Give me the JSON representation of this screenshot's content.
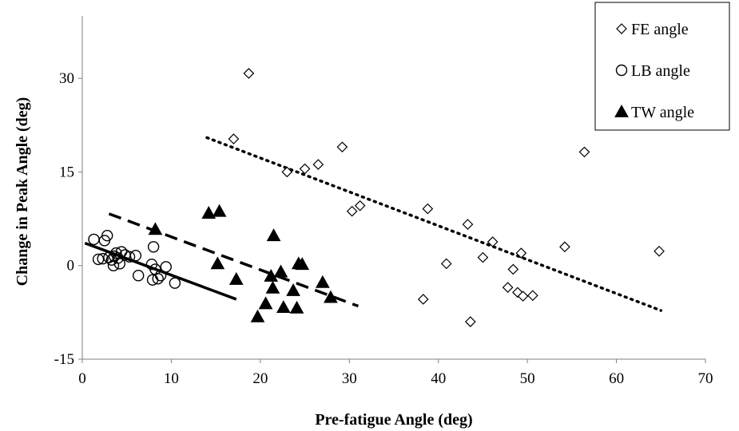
{
  "chart_data": {
    "type": "scatter",
    "xlabel": "Pre-fatigue Angle (deg)",
    "ylabel": "Change in Peak Angle (deg)",
    "xlim": [
      0,
      70
    ],
    "ylim": [
      -15,
      40
    ],
    "x_ticks": [
      0,
      10,
      20,
      30,
      40,
      50,
      60,
      70
    ],
    "y_ticks": [
      -15,
      0,
      15,
      30
    ],
    "grid": false,
    "legend_position": "top-right",
    "series": [
      {
        "name": "FE angle",
        "marker": "diamond",
        "points": [
          [
            17,
            20.3
          ],
          [
            18.7,
            30.8
          ],
          [
            23,
            15
          ],
          [
            25,
            15.5
          ],
          [
            26.5,
            16.2
          ],
          [
            29.2,
            19
          ],
          [
            30.3,
            8.7
          ],
          [
            31.2,
            9.6
          ],
          [
            38.3,
            -5.4
          ],
          [
            38.8,
            9.1
          ],
          [
            40.9,
            0.3
          ],
          [
            43.3,
            6.6
          ],
          [
            43.6,
            -9
          ],
          [
            45,
            1.3
          ],
          [
            46.1,
            3.8
          ],
          [
            47.8,
            -3.5
          ],
          [
            48.4,
            -0.6
          ],
          [
            48.9,
            -4.3
          ],
          [
            49.3,
            2
          ],
          [
            49.5,
            -4.9
          ],
          [
            50.6,
            -4.8
          ],
          [
            54.2,
            3
          ],
          [
            56.4,
            18.2
          ],
          [
            64.8,
            2.3
          ]
        ]
      },
      {
        "name": "LB angle",
        "marker": "circle",
        "points": [
          [
            1.3,
            4.2
          ],
          [
            1.8,
            1
          ],
          [
            2.3,
            1.1
          ],
          [
            2.5,
            4
          ],
          [
            2.8,
            4.8
          ],
          [
            3,
            1.3
          ],
          [
            3.3,
            0.9
          ],
          [
            3.5,
            0
          ],
          [
            3.6,
            1.5
          ],
          [
            3.8,
            2
          ],
          [
            4,
            1.2
          ],
          [
            4.2,
            0.3
          ],
          [
            4.4,
            2.2
          ],
          [
            4.8,
            1.7
          ],
          [
            5.3,
            1.4
          ],
          [
            6,
            1.6
          ],
          [
            6.3,
            -1.6
          ],
          [
            7.8,
            0.2
          ],
          [
            7.9,
            -2.3
          ],
          [
            8,
            3
          ],
          [
            8.2,
            -0.6
          ],
          [
            8.5,
            -2.1
          ],
          [
            8.8,
            -1.6
          ],
          [
            9.4,
            -0.2
          ],
          [
            10.4,
            -2.8
          ]
        ]
      },
      {
        "name": "TW angle",
        "marker": "triangle",
        "points": [
          [
            8.2,
            5.8
          ],
          [
            14.2,
            8.4
          ],
          [
            15.2,
            0.3
          ],
          [
            15.4,
            8.7
          ],
          [
            17.3,
            -2.2
          ],
          [
            19.7,
            -8.2
          ],
          [
            20.6,
            -6.1
          ],
          [
            21.2,
            -1.7
          ],
          [
            21.4,
            -3.6
          ],
          [
            21.5,
            4.8
          ],
          [
            22.3,
            -1
          ],
          [
            22.6,
            -6.7
          ],
          [
            23.7,
            -4
          ],
          [
            24.1,
            -6.8
          ],
          [
            24.3,
            0.3
          ],
          [
            24.7,
            0.2
          ],
          [
            27,
            -2.7
          ],
          [
            27.9,
            -5.1
          ]
        ]
      }
    ],
    "trendlines": [
      {
        "series": "FE angle",
        "style": "dotted",
        "x": [
          14,
          65
        ],
        "y": [
          20.5,
          -7.2
        ]
      },
      {
        "series": "LB angle",
        "style": "solid",
        "x": [
          0.3,
          17.3
        ],
        "y": [
          3.6,
          -5.4
        ]
      },
      {
        "series": "TW angle",
        "style": "dashed",
        "x": [
          3,
          31
        ],
        "y": [
          8.3,
          -6.5
        ]
      }
    ]
  }
}
